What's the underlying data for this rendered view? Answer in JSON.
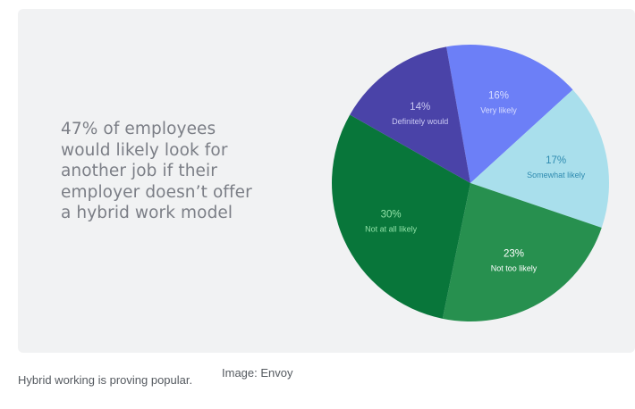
{
  "headline": {
    "lines": [
      "47% of employees",
      "would likely look for",
      "another job if their",
      "employer doesn’t offer",
      "a hybrid work model"
    ]
  },
  "caption": "Hybrid working is proving popular.",
  "credit": "Image: Envoy",
  "chart_data": {
    "type": "pie",
    "title": "",
    "slices": [
      {
        "label": "Very likely",
        "value": 16,
        "display": "16%",
        "color": "#6c7ff7",
        "text_color": "#d8ddff"
      },
      {
        "label": "Somewhat likely",
        "value": 17,
        "display": "17%",
        "color": "#a9dfec",
        "text_color": "#2f8bb0"
      },
      {
        "label": "Not too likely",
        "value": 23,
        "display": "23%",
        "color": "#27904f",
        "text_color": "#ffffff"
      },
      {
        "label": "Not at all likely",
        "value": 30,
        "display": "30%",
        "color": "#08763a",
        "text_color": "#8fe0a6"
      },
      {
        "label": "Definitely would",
        "value": 14,
        "display": "14%",
        "color": "#4a43a8",
        "text_color": "#c9c8f2"
      }
    ]
  }
}
